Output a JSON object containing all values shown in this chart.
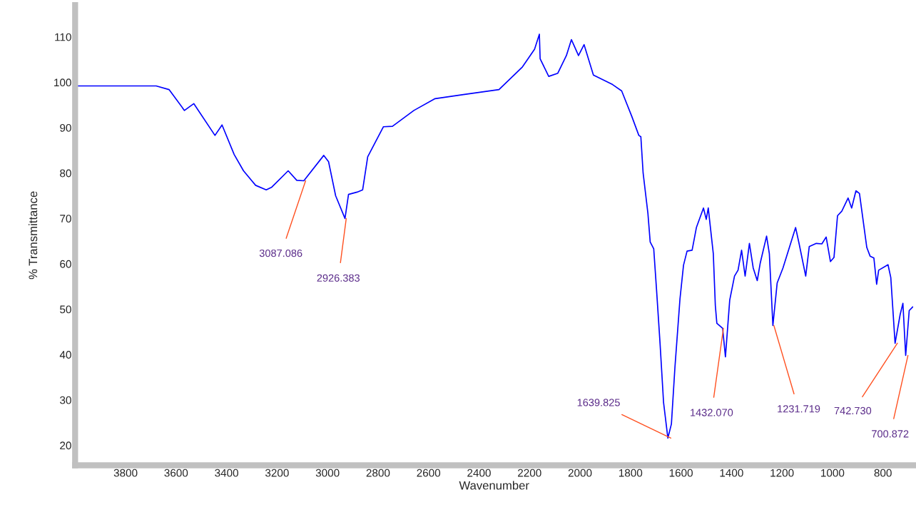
{
  "chart_data": {
    "type": "line",
    "xlabel": "Wavenumber",
    "ylabel": "% Transmittance",
    "xlim": [
      4000,
      680
    ],
    "ylim": [
      15.6,
      117
    ],
    "xticks": [
      3800,
      3600,
      3400,
      3200,
      3000,
      2800,
      2600,
      2400,
      2200,
      2000,
      1800,
      1600,
      1400,
      1200,
      1000,
      800
    ],
    "yticks": [
      20,
      30,
      40,
      50,
      60,
      70,
      80,
      90,
      100,
      110
    ],
    "grid": false,
    "legend": false,
    "series": [
      {
        "color": "#0000ff",
        "x": [
          4000,
          3839,
          3679,
          3628,
          3567,
          3530,
          3446,
          3418,
          3370,
          3333,
          3285,
          3243,
          3221,
          3156,
          3122,
          3094,
          3015,
          2996,
          2968,
          2931,
          2917,
          2883,
          2861,
          2841,
          2779,
          2743,
          2658,
          2574,
          2462,
          2321,
          2228,
          2180,
          2161,
          2158,
          2124,
          2088,
          2054,
          2034,
          2006,
          1984,
          1947,
          1871,
          1835,
          1795,
          1767,
          1759,
          1750,
          1731,
          1722,
          1708,
          1697,
          1683,
          1669,
          1652,
          1638,
          1624,
          1604,
          1590,
          1576,
          1556,
          1539,
          1511,
          1500,
          1492,
          1472,
          1464,
          1458,
          1435,
          1424,
          1407,
          1388,
          1374,
          1360,
          1346,
          1329,
          1314,
          1298,
          1286,
          1261,
          1250,
          1236,
          1219,
          1196,
          1174,
          1146,
          1132,
          1106,
          1092,
          1064,
          1042,
          1025,
          1008,
          994,
          980,
          963,
          938,
          924,
          907,
          893,
          864,
          851,
          836,
          825,
          817,
          780,
          769,
          752,
          732,
          721,
          710,
          696,
          682
        ],
        "values": [
          99.2,
          99.2,
          99.2,
          98.4,
          93.8,
          95.3,
          88.3,
          90.6,
          84.1,
          80.5,
          77.3,
          76.3,
          76.9,
          80.5,
          78.4,
          78.3,
          83.9,
          82.5,
          75.0,
          70.0,
          75.3,
          75.8,
          76.3,
          83.6,
          90.2,
          90.3,
          93.8,
          96.4,
          97.3,
          98.4,
          103.4,
          107.3,
          110.6,
          105.2,
          101.3,
          102.0,
          105.9,
          109.4,
          105.9,
          108.3,
          101.6,
          99.5,
          98.1,
          92.5,
          88.3,
          88.0,
          80.0,
          71.1,
          64.8,
          63.3,
          54.4,
          42.5,
          29.4,
          21.6,
          24.7,
          37.2,
          52.3,
          59.7,
          62.8,
          63.0,
          68.0,
          72.3,
          69.8,
          72.3,
          62.2,
          50.8,
          46.9,
          45.8,
          39.5,
          52.0,
          57.3,
          58.6,
          63.0,
          57.3,
          64.5,
          59.1,
          56.3,
          60.2,
          66.1,
          62.2,
          46.4,
          55.8,
          59.1,
          63.0,
          68.0,
          64.4,
          57.3,
          63.8,
          64.5,
          64.4,
          65.9,
          60.5,
          61.4,
          70.6,
          71.6,
          74.5,
          72.3,
          76.1,
          75.5,
          63.6,
          61.7,
          61.3,
          55.5,
          58.6,
          59.8,
          57.0,
          42.5,
          48.8,
          51.3,
          39.8,
          49.7,
          50.5
        ]
      }
    ],
    "annotations": [
      {
        "text": "3087.086",
        "x": 3087,
        "y": 78.3
      },
      {
        "text": "2926.383",
        "x": 2926,
        "y": 70.0
      },
      {
        "text": "1639.825",
        "x": 1640,
        "y": 21.6
      },
      {
        "text": "1432.070",
        "x": 1432,
        "y": 45.8
      },
      {
        "text": "1231.719",
        "x": 1232,
        "y": 46.4
      },
      {
        "text": "742.730",
        "x": 743,
        "y": 42.5
      },
      {
        "text": "700.872",
        "x": 701,
        "y": 39.8
      }
    ]
  }
}
